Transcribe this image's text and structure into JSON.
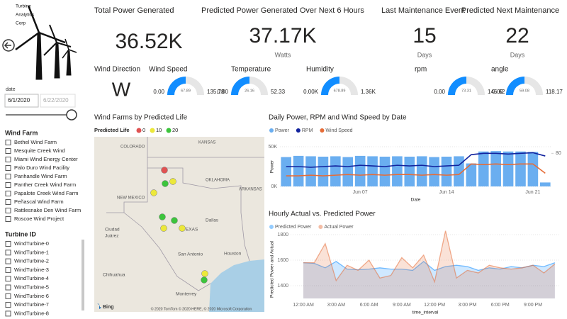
{
  "header": {
    "logo": [
      "Turbine",
      "Analytics",
      "Corp"
    ]
  },
  "filters": {
    "date_label": "date",
    "date_start": "6/1/2020",
    "date_end": "6/22/2020",
    "wind_farm_title": "Wind Farm",
    "wind_farms": [
      "Bethel Wind Farm",
      "Mesquite Creek Wind",
      "Miami Wind Energy Center",
      "Palo Duro Wind Facility",
      "Panhandle Wind Farm",
      "Panther Creek Wind Farm",
      "Papalote Creek Wind Farm",
      "Peñascal Wind Farm",
      "Rattlesnake Den Wind Farm",
      "Roscoe Wind Project"
    ],
    "turbine_title": "Turbine ID",
    "turbines": [
      "WindTurbine-0",
      "WindTurbine-1",
      "WindTurbine-2",
      "WindTurbine-3",
      "WindTurbine-4",
      "WindTurbine-5",
      "WindTurbine-6",
      "WindTurbine-7",
      "WindTurbine-8"
    ]
  },
  "kpis": [
    {
      "title": "Total Power Generated",
      "value": "36.52K"
    },
    {
      "title": "Predicted Power Generated Over Next 6 Hours",
      "value": "37.17K",
      "unit": "Watts"
    },
    {
      "title": "Last Maintenance Event",
      "value": "15",
      "unit": "Days"
    },
    {
      "title": "Predicted Next Maintenance",
      "value": "22",
      "unit": "Days"
    }
  ],
  "wind_direction": {
    "title": "Wind Direction",
    "value": "W"
  },
  "gauges": [
    {
      "title": "Wind Speed",
      "min": {
        "value": 0,
        "label": "0.00"
      },
      "max": {
        "value": 135.78,
        "label": "135.78"
      },
      "value": {
        "value": 67.89,
        "label": "67.89"
      }
    },
    {
      "title": "Temperature",
      "min": {
        "value": 0,
        "label": "0.00"
      },
      "max": {
        "value": 52.33,
        "label": "52.33"
      },
      "value": {
        "value": 26.16,
        "label": "26.16"
      }
    },
    {
      "title": "Humidity",
      "min": {
        "value": 0,
        "label": "0.00K"
      },
      "max": {
        "value": 1360,
        "label": "1.36K"
      },
      "value": {
        "value": 678.89,
        "label": "678.89"
      }
    },
    {
      "title": "rpm",
      "min": {
        "value": 0,
        "label": "0.00"
      },
      "max": {
        "value": 146.62,
        "label": "146.62"
      },
      "value": {
        "value": 73.31,
        "label": "73.31"
      }
    },
    {
      "title": "angle",
      "min": {
        "value": 0,
        "label": "0.00"
      },
      "max": {
        "value": 118.17,
        "label": "118.17"
      },
      "value": {
        "value": 59.08,
        "label": "59.08"
      }
    }
  ],
  "map": {
    "title": "Wind Farms by Predicted Life",
    "legend_title": "Predicted Life",
    "legend": [
      {
        "value": 0,
        "color": "#e05252"
      },
      {
        "value": 10,
        "color": "#ece83a"
      },
      {
        "value": 20,
        "color": "#3cc43c"
      }
    ],
    "points": [
      0,
      20,
      10,
      10,
      20,
      10,
      20,
      10,
      10,
      20
    ],
    "labels": [
      "COLORADO",
      "KANSAS",
      "OKLAHOMA",
      "NEW MEXICO",
      "ARKANSAS",
      "TEXAS",
      "Dallas",
      "Ciudad",
      "Juárez",
      "Chihuahua",
      "San Antonio",
      "Houston",
      "Monterrey"
    ],
    "attribution": "© 2020 TomTom © 2020 HERE, © 2020 Microsoft Corporation",
    "provider": "Bing"
  },
  "chart_data": [
    {
      "type": "combo",
      "title": "Daily Power, RPM and Wind Speed by Date",
      "x_label": "Date",
      "y_label": "Power",
      "categories": [
        null,
        null,
        null,
        null,
        null,
        null,
        "Jun 07",
        null,
        null,
        null,
        null,
        null,
        null,
        "Jun 14",
        null,
        null,
        null,
        null,
        null,
        null,
        "Jun 21",
        null
      ],
      "series": [
        {
          "name": "Power",
          "type": "bar",
          "color": "#6aaef0",
          "values": [
            37000,
            38500,
            38000,
            37500,
            38000,
            37000,
            38500,
            38000,
            37500,
            38000,
            37500,
            38000,
            37000,
            37500,
            38000,
            29000,
            44000,
            44500,
            44000,
            44000,
            43500,
            5000
          ]
        },
        {
          "name": "RPM",
          "type": "line",
          "axis": "y2",
          "color": "#12239e",
          "values": [
            70,
            70,
            69.5,
            70,
            70.5,
            70,
            71,
            70.5,
            70,
            71,
            70.5,
            71,
            70,
            70.5,
            71,
            79,
            80,
            80,
            79.5,
            80,
            80.5,
            78
          ]
        },
        {
          "name": "Wind Speed",
          "type": "line",
          "axis": "y2",
          "color": "#e66c37",
          "values": [
            63,
            63,
            63.5,
            63,
            63.5,
            64,
            63.5,
            64,
            63.5,
            64,
            64,
            63.5,
            64,
            63.5,
            64,
            72,
            71.5,
            72,
            71.5,
            72,
            72,
            65
          ]
        }
      ],
      "ylim": [
        0,
        50000
      ],
      "yticks": [
        {
          "value": 0,
          "label": "0K"
        },
        {
          "value": 50000,
          "label": "50K"
        }
      ],
      "y2lim": [
        55,
        85
      ],
      "y2ticks": [
        80
      ]
    },
    {
      "type": "area",
      "title": "Hourly Actual vs. Predicted Power",
      "x_label": "time_interval",
      "y_label": "Predicted Power and Actual",
      "categories": [
        "12:00 AM",
        null,
        null,
        "3:00 AM",
        null,
        null,
        "6:00 AM",
        null,
        null,
        "9:00 AM",
        null,
        null,
        "12:00 PM",
        null,
        null,
        "3:00 PM",
        null,
        null,
        "6:00 PM",
        null,
        null,
        "9:00 PM",
        null,
        null
      ],
      "series": [
        {
          "name": "Predicted Power",
          "color": "#118dff",
          "values": [
            1580,
            1575,
            1540,
            1590,
            1530,
            1525,
            1530,
            1540,
            1530,
            1530,
            1520,
            1590,
            1520,
            1550,
            1560,
            1550,
            1520,
            1540,
            1530,
            1550,
            1540,
            1560,
            1550,
            1580
          ]
        },
        {
          "name": "Actual Power",
          "color": "#e66c37",
          "values": [
            1580,
            1580,
            1730,
            1440,
            1560,
            1520,
            1600,
            1460,
            1480,
            1620,
            1540,
            1640,
            1430,
            1830,
            1460,
            1520,
            1500,
            1560,
            1540,
            1530,
            1540,
            1560,
            1500,
            1570
          ]
        }
      ],
      "ylim": [
        1300,
        1850
      ],
      "yticks": [
        1400,
        1600,
        1800
      ]
    }
  ]
}
